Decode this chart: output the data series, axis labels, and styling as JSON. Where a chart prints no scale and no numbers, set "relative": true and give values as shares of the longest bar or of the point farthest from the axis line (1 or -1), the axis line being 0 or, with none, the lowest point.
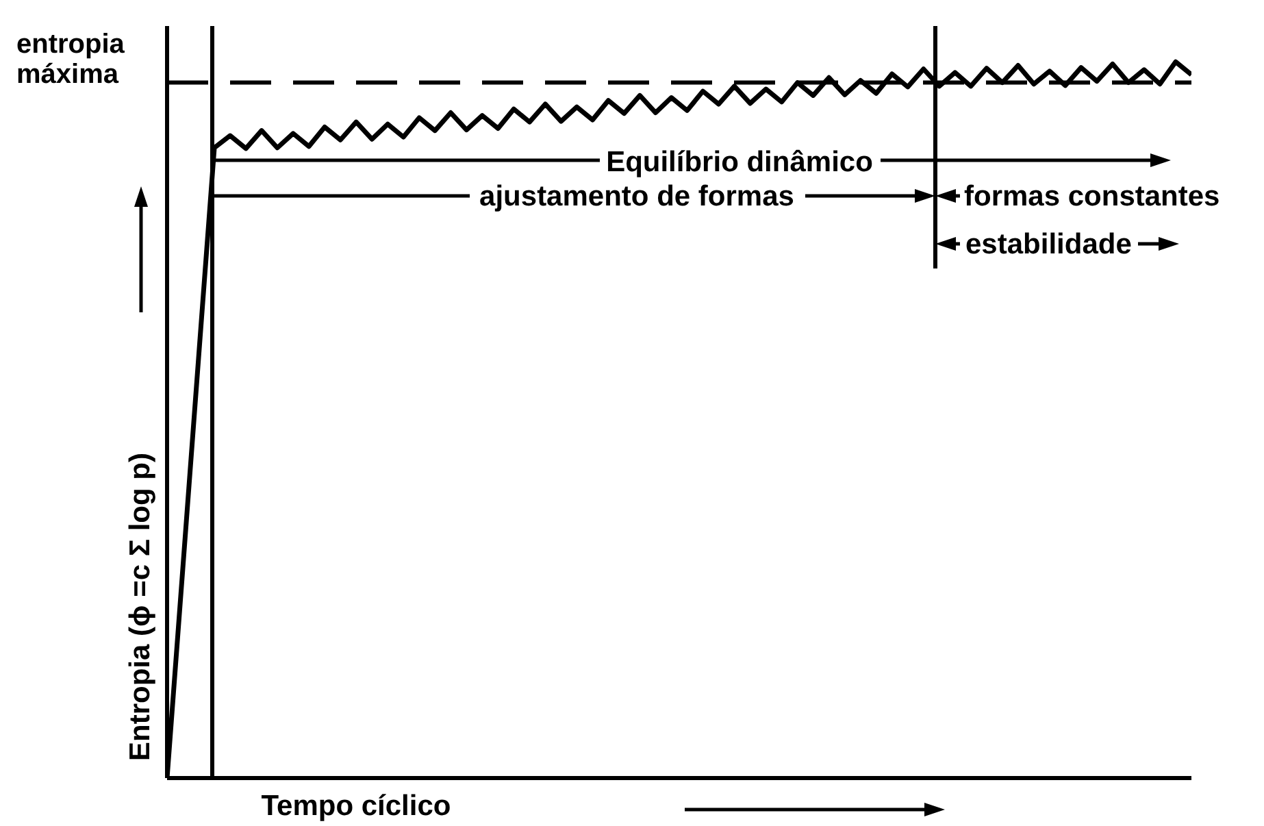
{
  "chart_data": {
    "type": "line",
    "relative": true,
    "xlabel": "Tempo cíclico",
    "ylabel": "Entropia (ϕ =c Σ log p)",
    "categories": [
      null,
      null,
      null,
      null,
      null,
      null,
      null,
      null,
      null,
      null,
      null,
      null,
      null,
      null,
      null,
      null,
      null,
      null,
      null,
      null,
      null,
      null,
      null,
      null,
      null,
      null,
      null,
      null,
      null,
      null,
      null,
      null,
      null,
      null,
      null,
      null,
      null,
      null,
      null,
      null,
      null,
      null,
      null,
      null,
      null,
      null,
      null,
      null,
      null,
      null,
      null,
      null,
      null,
      null,
      null,
      null,
      null,
      null,
      null,
      null,
      null,
      null,
      null,
      null,
      null,
      null
    ],
    "series": [
      {
        "color": "#000000",
        "values": [
          0,
          0.293,
          0.587,
          0.88,
          0.897,
          0.879,
          0.904,
          0.88,
          0.9,
          0.882,
          0.909,
          0.891,
          0.916,
          0.892,
          0.913,
          0.895,
          0.922,
          0.904,
          0.929,
          0.905,
          0.925,
          0.907,
          0.934,
          0.916,
          0.941,
          0.917,
          0.937,
          0.919,
          0.946,
          0.928,
          0.953,
          0.929,
          0.95,
          0.932,
          0.959,
          0.941,
          0.966,
          0.942,
          0.962,
          0.944,
          0.971,
          0.953,
          0.978,
          0.954,
          0.974,
          0.956,
          0.983,
          0.965,
          0.99,
          0.966,
          0.985,
          0.966,
          0.991,
          0.971,
          0.995,
          0.969,
          0.987,
          0.967,
          0.992,
          0.973,
          0.997,
          0.971,
          0.989,
          0.969,
          1.0,
          0.982
        ]
      }
    ],
    "ref_lines": [
      {
        "axis": "y",
        "value": 0.971,
        "label": "entropia máxima",
        "line_style": "dashed"
      }
    ],
    "annotations": [
      "Equilíbrio dinâmico",
      "ajustamento de formas",
      "formas constantes",
      "estabilidade"
    ]
  }
}
